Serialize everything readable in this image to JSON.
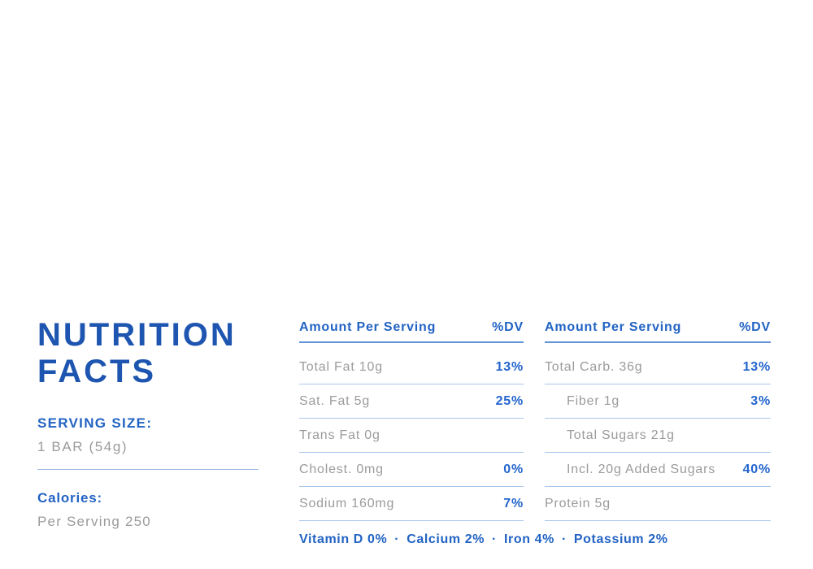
{
  "colors": {
    "heading_blue": "#1d55b0",
    "label_blue": "#2263c3",
    "value_blue": "#2365cd",
    "gray_text": "#9b9b9b",
    "header_rule": "#6494d8",
    "row_rule": "#aac6ec",
    "left_divider": "#9bb9e0",
    "background": "#ffffff"
  },
  "left_panel": {
    "title_line1": "NUTRITION",
    "title_line2": "FACTS",
    "serving_size_label": "SERVING SIZE:",
    "serving_size_value": "1 BAR (54g)",
    "calories_label": "Calories:",
    "calories_value": "Per Serving 250"
  },
  "tables": [
    {
      "header": {
        "label": "Amount Per Serving",
        "dv": "%DV"
      },
      "rows": [
        {
          "label": "Total Fat 10g",
          "dv": "13%",
          "indent": false
        },
        {
          "label": "Sat. Fat 5g",
          "dv": "25%",
          "indent": false
        },
        {
          "label": "Trans Fat 0g",
          "dv": "",
          "indent": false
        },
        {
          "label": "Cholest. 0mg",
          "dv": "0%",
          "indent": false
        },
        {
          "label": "Sodium 160mg",
          "dv": "7%",
          "indent": false
        }
      ]
    },
    {
      "header": {
        "label": "Amount Per Serving",
        "dv": "%DV"
      },
      "rows": [
        {
          "label": "Total Carb. 36g",
          "dv": "13%",
          "indent": false
        },
        {
          "label": "Fiber 1g",
          "dv": "3%",
          "indent": true
        },
        {
          "label": "Total Sugars 21g",
          "dv": "",
          "indent": true
        },
        {
          "label": "Incl. 20g Added Sugars",
          "dv": "40%",
          "indent": true
        },
        {
          "label": "Protein 5g",
          "dv": "",
          "indent": false
        }
      ]
    }
  ],
  "footer": {
    "items": [
      "Vitamin D 0%",
      "Calcium 2%",
      "Iron 4%",
      "Potassium 2%"
    ],
    "separator": "·"
  }
}
